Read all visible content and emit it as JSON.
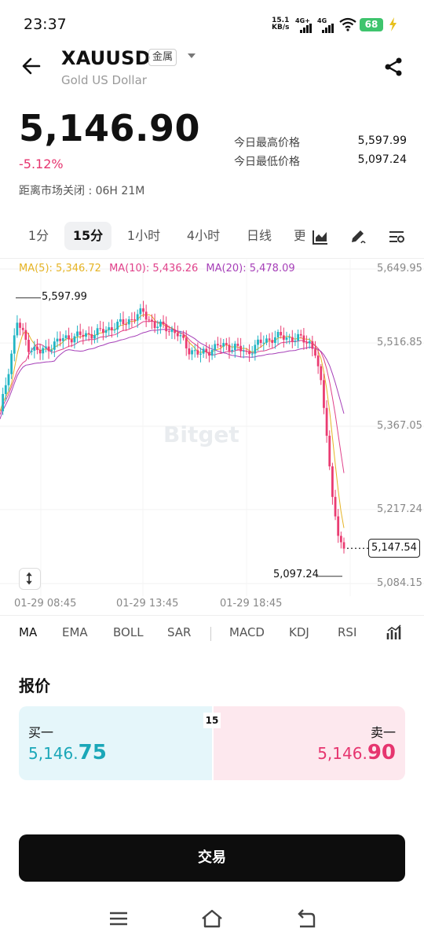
{
  "status": {
    "time": "23:37",
    "net_speed": "15.1",
    "net_unit": "KB/s",
    "sim1": "4G+",
    "sim2": "4G",
    "battery": "68"
  },
  "header": {
    "symbol": "XAUUSD",
    "tag": "金属",
    "subtitle": "Gold US Dollar"
  },
  "price": {
    "last": "5,146.90",
    "change": "-5.12%",
    "high_label": "今日最高价格",
    "high_value": "5,597.99",
    "low_label": "今日最低价格",
    "low_value": "5,097.24",
    "closing": "距离市场关闭 : 06H 21M"
  },
  "intervals": [
    "1分",
    "15分",
    "1小时",
    "4小时",
    "日线",
    "更"
  ],
  "active_interval": "15分",
  "chart": {
    "ma5": "MA(5): 5,346.72",
    "ma10": "MA(10): 5,436.26",
    "ma20": "MA(20): 5,478.09",
    "y_labels": [
      "5,649.95",
      "5,516.85",
      "5,367.05",
      "5,217.24",
      "5,084.15"
    ],
    "x_labels": [
      "01-29 08:45",
      "01-29 13:45",
      "01-29 18:45"
    ],
    "high_ann": "5,597.99",
    "low_ann": "5,097.24",
    "current": "5,147.54",
    "watermark": "Bitget"
  },
  "chart_data": {
    "type": "candlestick",
    "interval": "15分",
    "ylim": [
      5084.15,
      5649.95
    ],
    "y_ticks": [
      5649.95,
      5516.85,
      5367.05,
      5217.24,
      5084.15
    ],
    "x_ticks": [
      "01-29 08:45",
      "01-29 13:45",
      "01-29 18:45"
    ],
    "high": 5597.99,
    "low": 5097.24,
    "last": 5147.54,
    "moving_averages": [
      {
        "name": "MA(5)",
        "value": 5346.72,
        "color": "#e5b324"
      },
      {
        "name": "MA(10)",
        "value": 5436.26,
        "color": "#e0418a"
      },
      {
        "name": "MA(20)",
        "value": 5478.09,
        "color": "#a63fb8"
      }
    ],
    "up_color": "#22b5c4",
    "down_color": "#ea3c72"
  },
  "indicators": [
    "MA",
    "EMA",
    "BOLL",
    "SAR",
    "MACD",
    "KDJ",
    "RSI"
  ],
  "active_indicator": "MA",
  "quote": {
    "title": "报价",
    "bid_label": "买一",
    "bid_main": "5,146.",
    "bid_big": "75",
    "ask_label": "卖一",
    "ask_main": "5,146.",
    "ask_big": "90",
    "spread": "15"
  },
  "trade_button": "交易",
  "colors": {
    "accent_red": "#e6356f",
    "accent_teal": "#1aa7b8",
    "battery_green": "#3ec46d"
  }
}
